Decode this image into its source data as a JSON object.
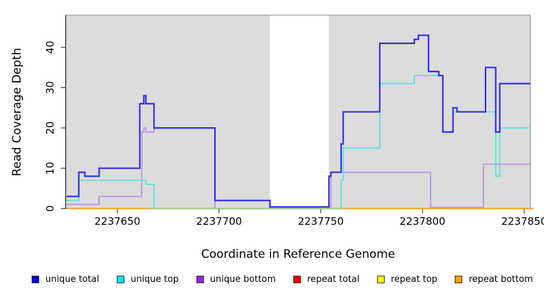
{
  "chart_data": {
    "type": "line",
    "subtype": "step-coverage-plot",
    "title": "",
    "xlabel": "Coordinate in Reference Genome",
    "ylabel": "Read Coverage Depth",
    "xlim": [
      2237624.7,
      2237853
    ],
    "ylim": [
      0,
      48
    ],
    "x_ticks": [
      2237650,
      2237700,
      2237750,
      2237800,
      2237850
    ],
    "x_tick_labels": [
      "2237650",
      "2237700",
      "2237750",
      "2237800",
      "2237850"
    ],
    "y_ticks": [
      0,
      10,
      20,
      30,
      40
    ],
    "y_tick_labels": [
      "0",
      "10",
      "20",
      "30",
      "40"
    ],
    "grid": false,
    "plot_background": "#dcdcdc",
    "highlight_band": {
      "from": 2237725,
      "to": 2237754,
      "color": "#ffffff"
    },
    "legend_position": "bottom",
    "series": [
      {
        "name": "unique total",
        "line_color": "#3030e0",
        "legend_color": "#0000f0",
        "width": 2.2,
        "steps": [
          [
            2237625,
            3
          ],
          [
            2237631,
            9
          ],
          [
            2237634,
            8
          ],
          [
            2237641,
            10
          ],
          [
            2237661,
            26
          ],
          [
            2237663,
            28
          ],
          [
            2237664,
            26
          ],
          [
            2237668,
            20
          ],
          [
            2237698,
            2
          ],
          [
            2237725,
            0.4
          ],
          [
            2237754,
            8
          ],
          [
            2237755,
            9
          ],
          [
            2237760,
            16
          ],
          [
            2237761,
            24
          ],
          [
            2237779,
            41
          ],
          [
            2237796,
            42
          ],
          [
            2237798,
            43
          ],
          [
            2237803,
            34
          ],
          [
            2237808,
            33
          ],
          [
            2237810,
            19
          ],
          [
            2237815,
            25
          ],
          [
            2237817,
            24
          ],
          [
            2237831,
            35
          ],
          [
            2237836,
            19
          ],
          [
            2237838,
            31
          ]
        ]
      },
      {
        "name": "unique top",
        "line_color": "#4fe3df",
        "legend_color": "#00e8e8",
        "width": 1.7,
        "steps": [
          [
            2237625,
            2
          ],
          [
            2237631,
            7
          ],
          [
            2237664,
            6
          ],
          [
            2237668,
            0
          ],
          [
            2237760,
            7
          ],
          [
            2237761,
            15
          ],
          [
            2237779,
            31
          ],
          [
            2237796,
            33
          ],
          [
            2237810,
            19
          ],
          [
            2237815,
            24
          ],
          [
            2237836,
            8
          ],
          [
            2237838,
            20
          ]
        ]
      },
      {
        "name": "unique bottom",
        "line_color": "#bd8ce4",
        "legend_color": "#9028d8",
        "width": 1.7,
        "steps": [
          [
            2237625,
            1
          ],
          [
            2237641,
            3
          ],
          [
            2237662,
            19
          ],
          [
            2237663,
            20
          ],
          [
            2237664,
            19
          ],
          [
            2237668,
            20
          ],
          [
            2237698,
            0
          ],
          [
            2237755,
            9
          ],
          [
            2237804,
            0.3
          ],
          [
            2237830,
            11
          ]
        ]
      },
      {
        "name": "repeat total",
        "line_color": "#e00000",
        "legend_color": "#f00000",
        "width": 1.2,
        "steps": [
          [
            2237625,
            0
          ]
        ]
      },
      {
        "name": "repeat top",
        "line_color": "#ffff00",
        "legend_color": "#ffff00",
        "width": 1.2,
        "steps": [
          [
            2237625,
            0
          ]
        ]
      },
      {
        "name": "repeat bottom",
        "line_color": "#ff9c20",
        "legend_color": "#ffa000",
        "width": 2,
        "steps": [
          [
            2237625,
            0
          ]
        ]
      }
    ],
    "overlap_segments": [
      {
        "from": 2237668,
        "to": 2237760,
        "value": 0,
        "color": "#8dc98d",
        "note": "unique-top at zero overlapping repeat lines renders green"
      }
    ]
  },
  "legend": {
    "items": [
      {
        "label": "unique total"
      },
      {
        "label": "unique top"
      },
      {
        "label": "unique bottom"
      },
      {
        "label": "repeat total"
      },
      {
        "label": "repeat top"
      },
      {
        "label": "repeat bottom"
      }
    ]
  }
}
